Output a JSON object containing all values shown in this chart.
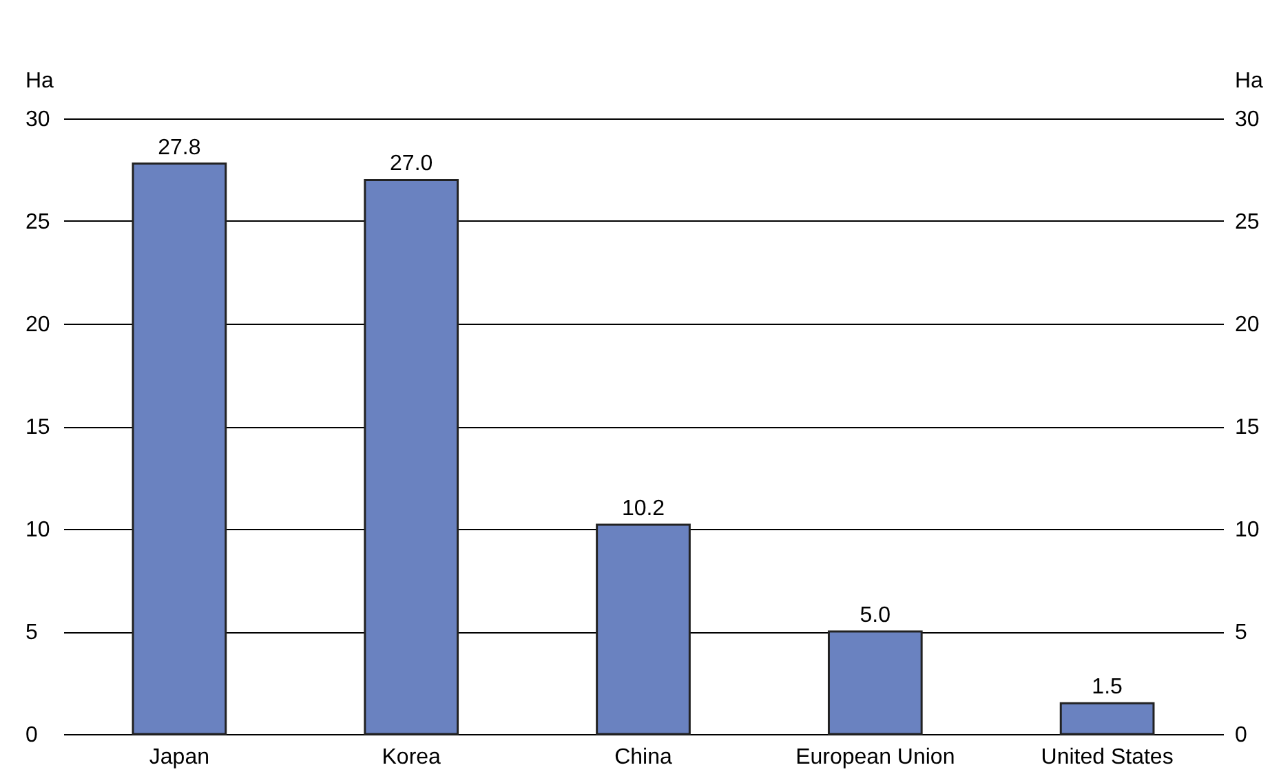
{
  "chart_data": {
    "type": "bar",
    "categories": [
      "Japan",
      "Korea",
      "China",
      "European Union",
      "United States"
    ],
    "values": [
      27.8,
      27.0,
      10.2,
      5.0,
      1.5
    ],
    "color": "#6a82c0",
    "ylabel": "Ha",
    "y2label": "Ha",
    "ylim": [
      0,
      30
    ],
    "yticks": [
      0,
      5,
      10,
      15,
      20,
      25,
      30
    ],
    "y2lim": [
      0,
      30
    ],
    "y2ticks": [
      0,
      5,
      10,
      15,
      20,
      25,
      30
    ],
    "grid": "y",
    "value_labels": [
      "27.8",
      "27.0",
      "10.2",
      "5.0",
      "1.5"
    ]
  }
}
